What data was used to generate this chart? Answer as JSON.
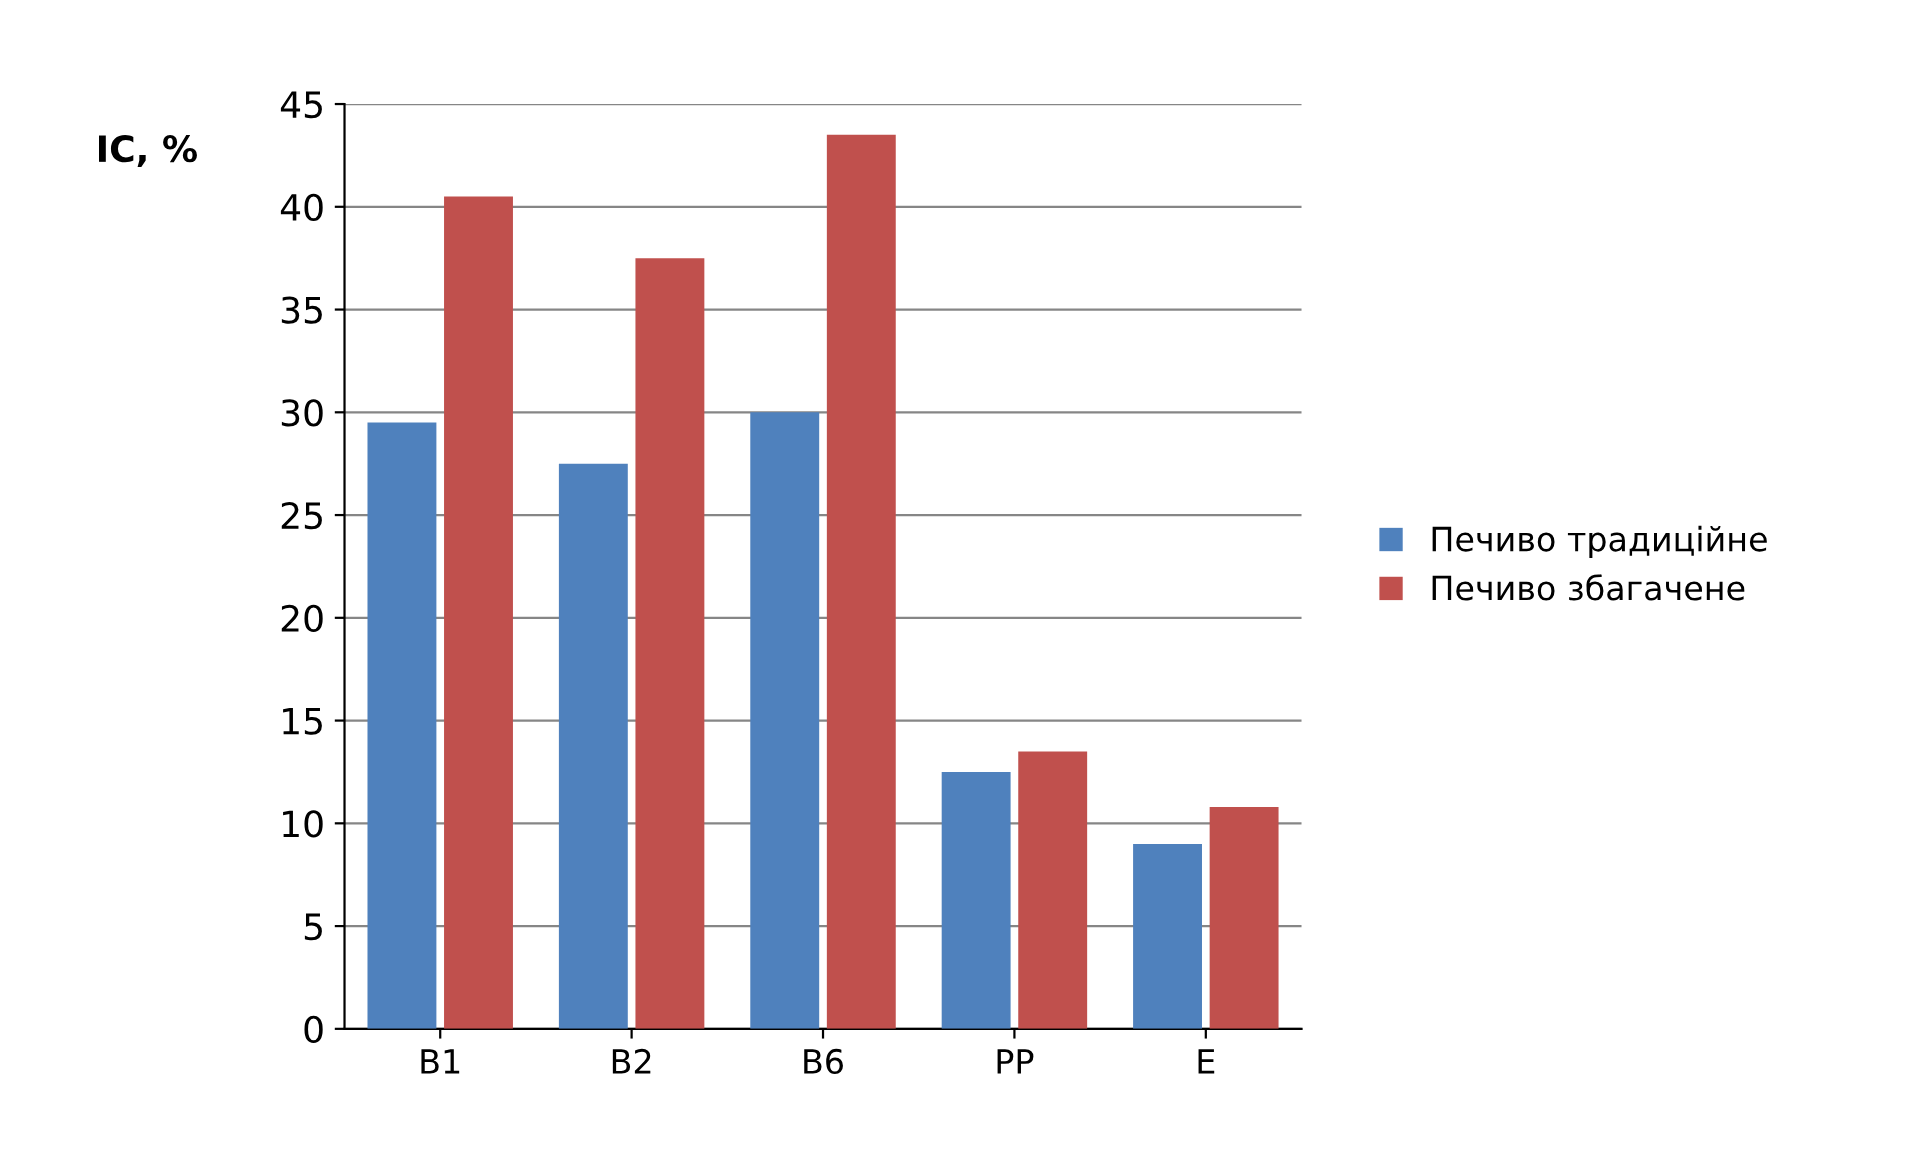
{
  "chart_data": {
    "type": "bar",
    "ylabel": "IC, %",
    "categories": [
      "B1",
      "B2",
      "B6",
      "PP",
      "E"
    ],
    "series": [
      {
        "name": "Печиво традиційне",
        "color": "#4f81bd",
        "values": [
          29.5,
          27.5,
          30,
          12.5,
          9
        ]
      },
      {
        "name": "Печиво збагачене",
        "color": "#c0504d",
        "values": [
          40.5,
          37.5,
          43.5,
          13.5,
          10.8
        ]
      }
    ],
    "ylim": [
      0,
      45
    ],
    "yticks": [
      0,
      5,
      10,
      15,
      20,
      25,
      30,
      35,
      40,
      45
    ],
    "grid": "y",
    "legend": "right"
  }
}
